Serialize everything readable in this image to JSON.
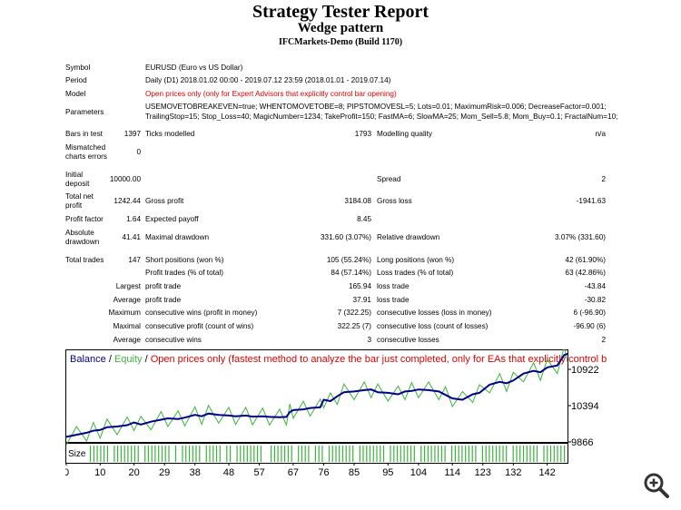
{
  "report": {
    "title": "Strategy Tester Report",
    "subtitle": "Wedge pattern",
    "server": "IFCMarkets-Demo (Build 1170)"
  },
  "info": {
    "symbol_label": "Symbol",
    "symbol_value": "EURUSD (Euro vs US Dollar)",
    "period_label": "Period",
    "period_value": "Daily (D1) 2018.01.02 00:00 - 2019.07.12 23:59 (2018.01.01 - 2019.07.14)",
    "model_label": "Model",
    "model_value": "Open prices only (only for Expert Advisors that explicitly control bar opening)",
    "parameters_label": "Parameters",
    "parameters_line1": "USEMOVETOBREAKEVEN=true; WHENTOMOVETOBE=8; PIPSTOMOVESL=5; Lots=0.01; MaximumRisk=0.006; DecreaseFactor=0.001;",
    "parameters_line2": "TrailingStop=15; Stop_Loss=40; MagicNumber=1234; TakeProfit=150; FastMA=6; SlowMA=25; Mom_Sell=5.8; Mom_Buy=0.1; FractalNum=10;"
  },
  "stats": {
    "bars_label": "Bars in test",
    "bars_value": "1397",
    "ticks_label": "Ticks modelled",
    "ticks_value": "1793",
    "quality_label": "Modelling quality",
    "quality_value": "n/a",
    "mismatched_label1": "Mismatched",
    "mismatched_label2": "charts errors",
    "mismatched_value": "0",
    "deposit_label1": "Initial",
    "deposit_label2": "deposit",
    "deposit_value": "10000.00",
    "spread_label": "Spread",
    "spread_value": "2",
    "netprofit_label1": "Total net",
    "netprofit_label2": "profit",
    "netprofit_value": "1242.44",
    "grossprofit_label": "Gross profit",
    "grossprofit_value": "3184.08",
    "grossloss_label": "Gross loss",
    "grossloss_value": "-1941.63",
    "pf_label": "Profit factor",
    "pf_value": "1.64",
    "payoff_label": "Expected payoff",
    "payoff_value": "8.45",
    "absdd_label1": "Absolute",
    "absdd_label2": "drawdown",
    "absdd_value": "41.41",
    "maxdd_label": "Maximal drawdown",
    "maxdd_value": "331.60 (3.07%)",
    "reldd_label": "Relative drawdown",
    "reldd_value": "3.07% (331.60)",
    "trades_label": "Total trades",
    "trades_value": "147",
    "short_label": "Short positions (won %)",
    "short_value": "105 (55.24%)",
    "long_label": "Long positions (won %)",
    "long_value": "42 (61.90%)",
    "pt_label": "Profit trades (% of total)",
    "pt_value": "84 (57.14%)",
    "lt_label": "Loss trades (% of total)",
    "lt_value": "63 (42.86%)",
    "largest_label": "Largest",
    "lp_label": "profit trade",
    "lp_value": "165.94",
    "ll_label": "loss trade",
    "ll_value": "-43.84",
    "average_label": "Average",
    "ap_label": "profit trade",
    "ap_value": "37.91",
    "al_label": "loss trade",
    "al_value": "-30.82",
    "maximum_label": "Maximum",
    "mcw_label": "consecutive wins (profit in money)",
    "mcw_value": "7 (322.25)",
    "mcl_label": "consecutive losses (loss in money)",
    "mcl_value": "6 (-96.90)",
    "maximal_label": "Maximal",
    "mcp_label": "consecutive profit (count of wins)",
    "mcp_value": "322.25 (7)",
    "mclc_label": "consecutive loss (count of losses)",
    "mclc_value": "-96.90 (6)",
    "average2_label": "Average",
    "acw_label": "consecutive wins",
    "acw_value": "3",
    "acl_label": "consecutive losses",
    "acl_value": "2"
  },
  "chart_data": {
    "type": "line",
    "legend_balance": "Balance",
    "legend_sep1": " / ",
    "legend_equity": "Equity",
    "legend_sep2": " / ",
    "legend_note": "Open prices only (fastest method to analyze the bar just completed, only for EAs that explicitly control b",
    "size_label": "Size",
    "colors": {
      "balance": "#00008b",
      "equity": "#3cb43c",
      "size": "#3cb43c",
      "note": "#e00000"
    },
    "y_ticks": [
      10922,
      10394,
      9866
    ],
    "x_ticks": [
      0,
      10,
      20,
      29,
      38,
      48,
      57,
      67,
      76,
      85,
      95,
      104,
      114,
      123,
      132,
      142
    ],
    "ylim": [
      9866,
      11200
    ],
    "xlim": [
      0,
      148
    ],
    "series": [
      {
        "name": "Balance",
        "x": [
          0,
          3,
          6,
          8,
          10,
          12,
          15,
          18,
          20,
          22,
          25,
          28,
          30,
          33,
          35,
          38,
          40,
          42,
          45,
          48,
          50,
          53,
          55,
          58,
          60,
          63,
          65,
          66,
          67,
          70,
          72,
          75,
          76,
          78,
          80,
          82,
          85,
          88,
          90,
          92,
          95,
          98,
          100,
          102,
          104,
          107,
          110,
          112,
          114,
          117,
          120,
          122,
          125,
          128,
          130,
          132,
          135,
          138,
          140,
          142,
          145,
          147,
          148
        ],
        "y": [
          9940,
          9970,
          10000,
          10030,
          10040,
          10080,
          10090,
          10110,
          10150,
          10120,
          10160,
          10190,
          10210,
          10200,
          10220,
          10260,
          10240,
          10280,
          10260,
          10250,
          10240,
          10250,
          10235,
          10240,
          10230,
          10225,
          10230,
          10300,
          10330,
          10340,
          10360,
          10370,
          10480,
          10460,
          10530,
          10590,
          10600,
          10620,
          10630,
          10590,
          10580,
          10560,
          10600,
          10610,
          10630,
          10620,
          10600,
          10550,
          10500,
          10480,
          10560,
          10580,
          10700,
          10740,
          10720,
          10760,
          10860,
          10900,
          10880,
          10950,
          10980,
          11130,
          11150
        ]
      }
    ]
  },
  "zoom_icon": "zoom-in-icon"
}
